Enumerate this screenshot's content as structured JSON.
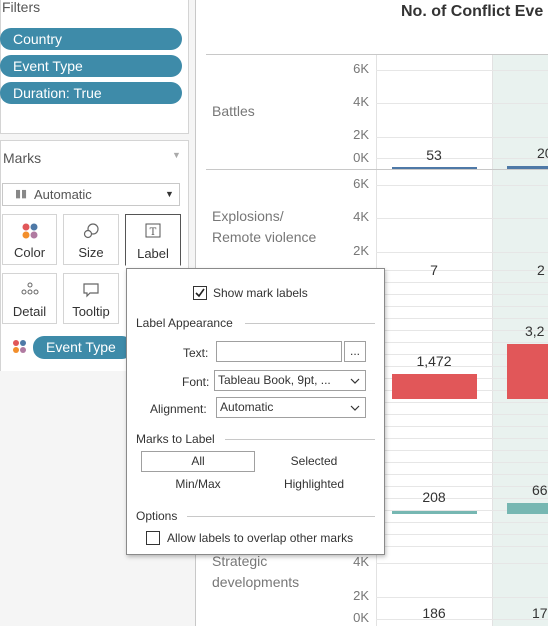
{
  "filters": {
    "title": "Filters",
    "pills": [
      "Country",
      "Event Type",
      "Duration: True"
    ]
  },
  "marks": {
    "title": "Marks",
    "mark_type": "Automatic",
    "buttons": {
      "color": "Color",
      "size": "Size",
      "label": "Label",
      "detail": "Detail",
      "tooltip": "Tooltip"
    },
    "color_field": "Event Type"
  },
  "chart": {
    "title": "No. of Conflict Eve",
    "rows": [
      {
        "label_line1": "Battles",
        "label_line2": "",
        "ticks": [
          "6K",
          "4K",
          "2K",
          "0K"
        ]
      },
      {
        "label_line1": "Explosions/",
        "label_line2": "Remote violence",
        "ticks": [
          "6K",
          "4K",
          "2K"
        ]
      },
      {
        "label_line1": "Strategic",
        "label_line2": "developments",
        "ticks": [
          "4K",
          "2K",
          "0K"
        ]
      }
    ],
    "value_labels": {
      "battles_c1": "53",
      "battles_c2": "20",
      "explosions_c1": "7",
      "explosions_c2": "2",
      "row3_c1": "1,472",
      "row3_c2": "3,2",
      "row4_c1": "208",
      "row4_c2": "66",
      "strategic_c1": "186",
      "strategic_c2": "17"
    },
    "colors": {
      "blue": "#4e79a7",
      "red": "#e15759",
      "teal": "#76b7b2",
      "band": "#e9f2ef"
    }
  },
  "label_popup": {
    "show_mark_labels": "Show mark labels",
    "show_mark_labels_checked": true,
    "label_appearance": "Label Appearance",
    "text_label": "Text:",
    "text_button": "...",
    "font_label": "Font:",
    "font_value": "Tableau Book, 9pt, ...",
    "alignment_label": "Alignment:",
    "alignment_value": "Automatic",
    "marks_to_label": "Marks to Label",
    "option_all": "All",
    "option_selected": "Selected",
    "option_minmax": "Min/Max",
    "option_highlighted": "Highlighted",
    "options_title": "Options",
    "allow_overlap": "Allow labels to overlap other marks",
    "allow_overlap_checked": false
  }
}
